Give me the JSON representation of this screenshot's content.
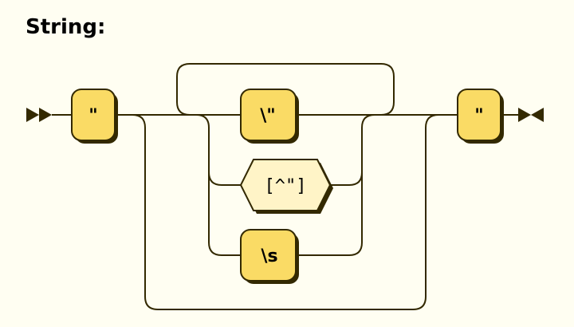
{
  "title": "String:",
  "tokens": {
    "open_quote": "\"",
    "escaped_quote": "\\\"",
    "not_quote": "[^\"]",
    "whitespace": "\\s",
    "close_quote": "\""
  },
  "colors": {
    "background": "#FFFEF2",
    "terminal_fill": "#FADB65",
    "nonterminal_fill": "#FFF4C7",
    "stroke": "#332900"
  },
  "icons": {
    "start": "double-right-triangle-icon",
    "end": "bowtie-end-icon"
  }
}
